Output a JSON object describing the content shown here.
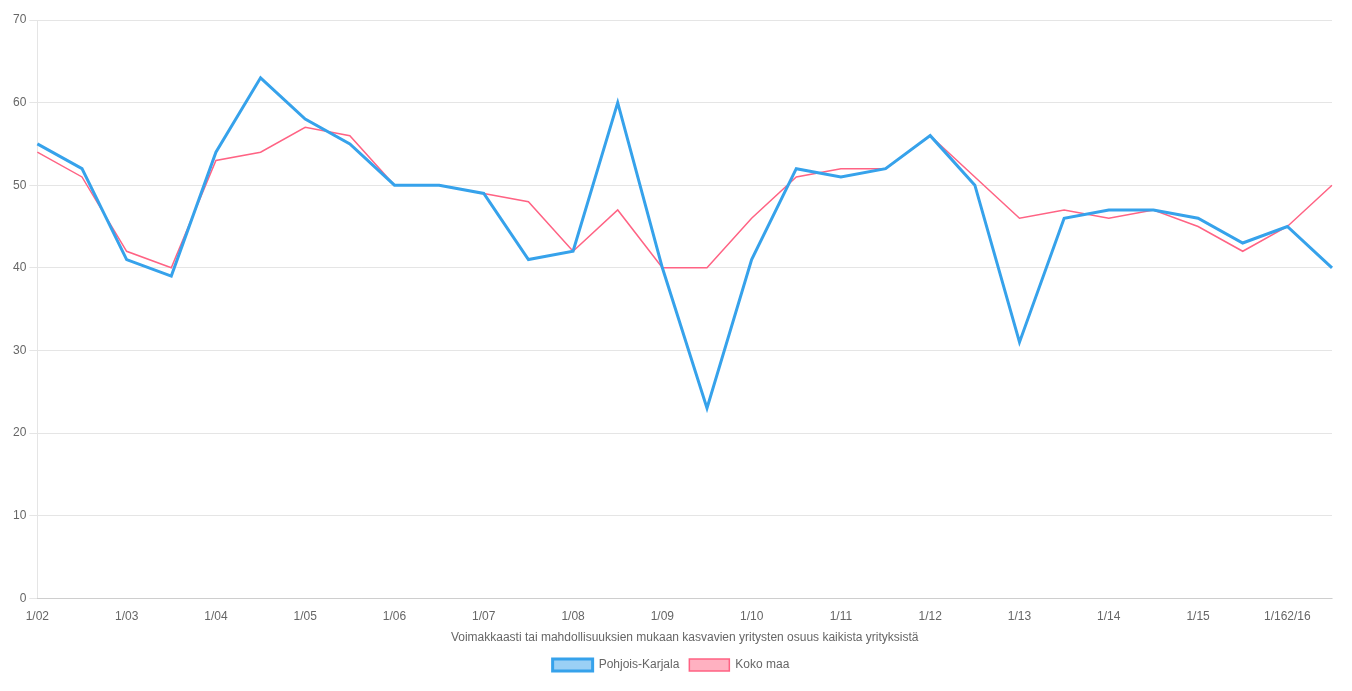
{
  "chart_data": {
    "type": "line",
    "xlabel": "Voimakkaasti tai mahdollisuuksien mukaan kasvavien yritysten osuus kaikista yrityksistä",
    "categories": [
      "1/02",
      null,
      "1/03",
      null,
      "1/04",
      null,
      "1/05",
      null,
      "1/06",
      null,
      "1/07",
      null,
      "1/08",
      null,
      "1/09",
      null,
      "1/10",
      null,
      "1/11",
      null,
      "1/12",
      null,
      "1/13",
      null,
      "1/14",
      null,
      "1/15",
      null,
      "1/162/16",
      null
    ],
    "series": [
      {
        "name": "Pohjois-Karjala",
        "values": [
          55,
          52,
          41,
          39,
          54,
          63,
          58,
          55,
          50,
          50,
          49,
          41,
          42,
          60,
          40,
          23,
          41,
          52,
          51,
          52,
          56,
          50,
          31,
          46,
          47,
          47,
          46,
          43,
          45,
          40
        ]
      },
      {
        "name": "Koko maa",
        "values": [
          54,
          51,
          42,
          40,
          53,
          54,
          57,
          56,
          50,
          50,
          49,
          48,
          42,
          47,
          40,
          40,
          46,
          51,
          52,
          52,
          56,
          51,
          46,
          47,
          46,
          47,
          45,
          42,
          45,
          50
        ]
      }
    ],
    "ylim": [
      0,
      70
    ],
    "yticks": [
      0,
      10,
      20,
      30,
      40,
      50,
      60,
      70
    ],
    "grid": "y",
    "legend": "bottom"
  }
}
